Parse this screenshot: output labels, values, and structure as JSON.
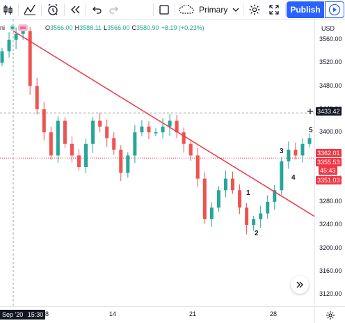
{
  "toolbar": {
    "icons": [
      "candles-icon",
      "indicators-icon",
      "alert-clock-icon",
      "replay-icon",
      "undo-icon",
      "redo-icon",
      "rectangle-icon",
      "cloud-icon",
      "gear-icon",
      "fullscreen-icon",
      "camera-icon"
    ],
    "layout_label": "Primary",
    "publish_label": "Publish"
  },
  "legend": {
    "symbol_fragment": "ni",
    "open_key": "O",
    "open": "3566.00",
    "high_key": "H",
    "high": "3588.11",
    "low_key": "L",
    "low": "3566.00",
    "close_key": "C",
    "close": "3580.90",
    "change": "+8.19 (+0.23%)"
  },
  "price_axis": {
    "currency": "USD",
    "ticks": [
      "3560.00",
      "3520.00",
      "3480.00",
      "3440.00",
      "3400.00",
      "3360.00",
      "3320.00",
      "3280.00",
      "3240.00",
      "3200.00",
      "3160.00",
      "3120.00"
    ],
    "tags": {
      "crosshair": "3433.42",
      "tag_a": "3362.01",
      "tag_b": "3355.53",
      "countdown": "45:43",
      "tag_c": "3351.03"
    }
  },
  "time_axis": {
    "cursor_label": "Sep '20",
    "cursor_time": "15:30",
    "labels": [
      "8",
      "14",
      "21",
      "28"
    ]
  },
  "annotations": [
    "1",
    "2",
    "3",
    "4",
    "5"
  ],
  "colors": {
    "up": "#26a69a",
    "down": "#ef5350",
    "trendline": "#f23645",
    "accent": "#2962ff"
  },
  "chart_data": {
    "type": "candlestick",
    "y_unit": "USD",
    "ylim": [
      3120,
      3580
    ],
    "visible_x_labels": [
      "Sep '20",
      "8",
      "14",
      "21",
      "28"
    ],
    "approx_closes": [
      3540,
      3560,
      3570,
      3575,
      3480,
      3440,
      3400,
      3360,
      3420,
      3380,
      3360,
      3340,
      3380,
      3420,
      3410,
      3390,
      3370,
      3330,
      3360,
      3400,
      3410,
      3400,
      3400,
      3410,
      3420,
      3400,
      3380,
      3360,
      3320,
      3250,
      3270,
      3300,
      3320,
      3300,
      3270,
      3240,
      3250,
      3260,
      3280,
      3300,
      3350,
      3370,
      3360,
      3380,
      3390
    ],
    "trendline": {
      "start_price": 3575,
      "end_price": 3255
    },
    "crosshair_price": 3433.42
  }
}
